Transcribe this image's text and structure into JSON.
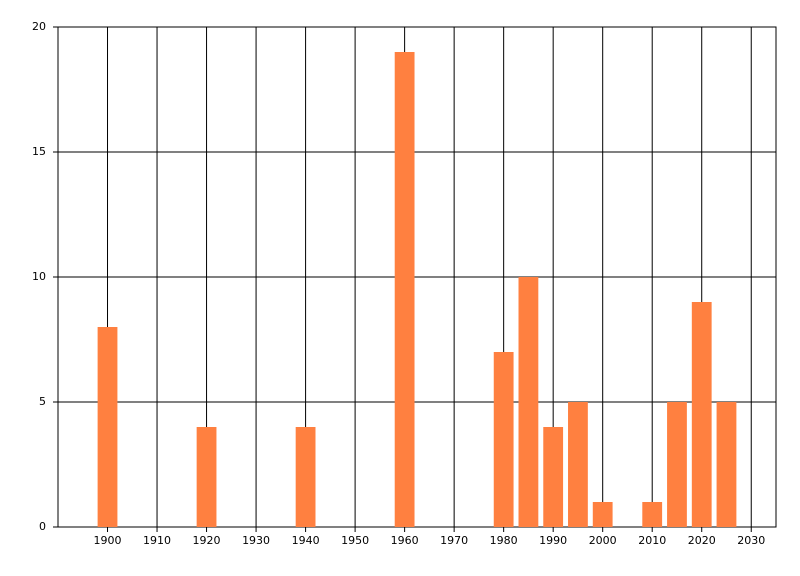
{
  "chart_data": {
    "type": "bar",
    "x": [
      1900,
      1920,
      1940,
      1960,
      1980,
      1985,
      1990,
      1995,
      2000,
      2010,
      2015,
      2020,
      2025
    ],
    "values": [
      8,
      4,
      4,
      19,
      7,
      10,
      4,
      5,
      1,
      1,
      5,
      9,
      5
    ],
    "color": "#ff8040",
    "xlim": [
      1890,
      2035
    ],
    "xticks": [
      1900,
      1910,
      1920,
      1930,
      1940,
      1950,
      1960,
      1970,
      1980,
      1990,
      2000,
      2010,
      2020,
      2030
    ],
    "ylim": [
      0,
      20
    ],
    "yticks": [
      0,
      5,
      10,
      15,
      20
    ],
    "grid": true
  }
}
